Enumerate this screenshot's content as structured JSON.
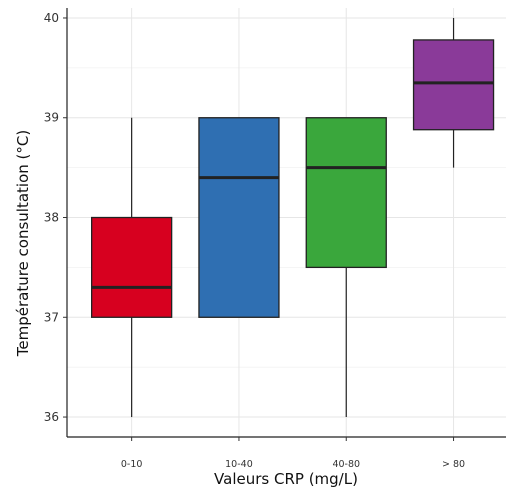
{
  "chart_data": {
    "type": "box",
    "xlabel": "Valeurs CRP (mg/L)",
    "ylabel": "Température consultation (°C)",
    "ylim": [
      35.8,
      40.1
    ],
    "yticks": [
      36,
      37,
      38,
      39,
      40
    ],
    "grid": true,
    "categories": [
      "0-10",
      "10-40",
      "40-80",
      "> 80"
    ],
    "boxes": [
      {
        "category": "0-10",
        "min": 36.0,
        "q1": 37.0,
        "median": 37.3,
        "q3": 38.0,
        "max": 39.0,
        "color": "#d7001f"
      },
      {
        "category": "10-40",
        "min": 37.0,
        "q1": 37.0,
        "median": 38.4,
        "q3": 39.0,
        "max": 39.0,
        "color": "#2f6fb2"
      },
      {
        "category": "40-80",
        "min": 36.0,
        "q1": 37.5,
        "median": 38.5,
        "q3": 39.0,
        "max": 39.0,
        "color": "#3aa73c"
      },
      {
        "category": "> 80",
        "min": 38.5,
        "q1": 38.88,
        "median": 39.35,
        "q3": 39.78,
        "max": 40.0,
        "color": "#8a3a99"
      }
    ]
  }
}
